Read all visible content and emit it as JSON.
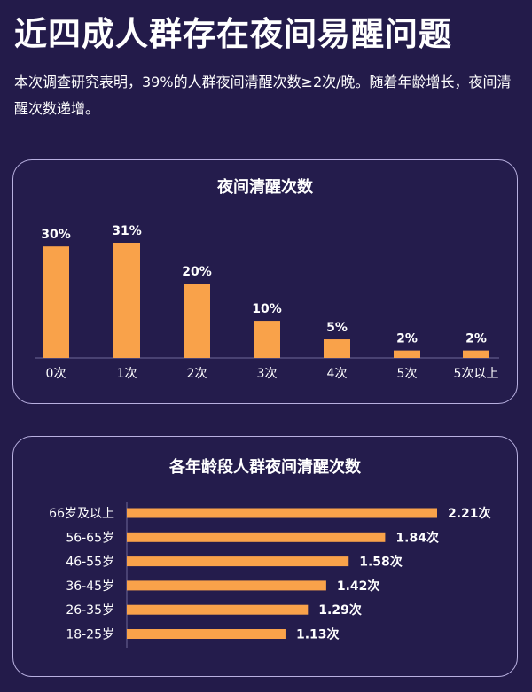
{
  "title": "近四成人群存在夜间易醒问题",
  "intro": "本次调查研究表明，39%的人群夜间清醒次数≥2次/晚。随着年龄增长，夜间清醒次数递增。",
  "colors": {
    "background": "#231B4A",
    "bar": "#F9A24A",
    "card_border": "#B8B0E0"
  },
  "chart_data": [
    {
      "type": "bar",
      "title": "夜间清醒次数",
      "categories": [
        "0次",
        "1次",
        "2次",
        "3次",
        "4次",
        "5次",
        "5次以上"
      ],
      "values": [
        30,
        31,
        20,
        10,
        5,
        2,
        2
      ],
      "value_labels": [
        "30%",
        "31%",
        "20%",
        "10%",
        "5%",
        "2%",
        "2%"
      ],
      "unit": "%",
      "ylim": [
        0,
        31
      ],
      "grid": false
    },
    {
      "type": "bar",
      "orientation": "horizontal",
      "title": "各年龄段人群夜间清醒次数",
      "categories": [
        "66岁及以上",
        "56-65岁",
        "46-55岁",
        "36-45岁",
        "26-35岁",
        "18-25岁"
      ],
      "values": [
        2.21,
        1.84,
        1.58,
        1.42,
        1.29,
        1.13
      ],
      "value_labels": [
        "2.21次",
        "1.84次",
        "1.58次",
        "1.42次",
        "1.29次",
        "1.13次"
      ],
      "unit": "次",
      "grid": false
    }
  ]
}
